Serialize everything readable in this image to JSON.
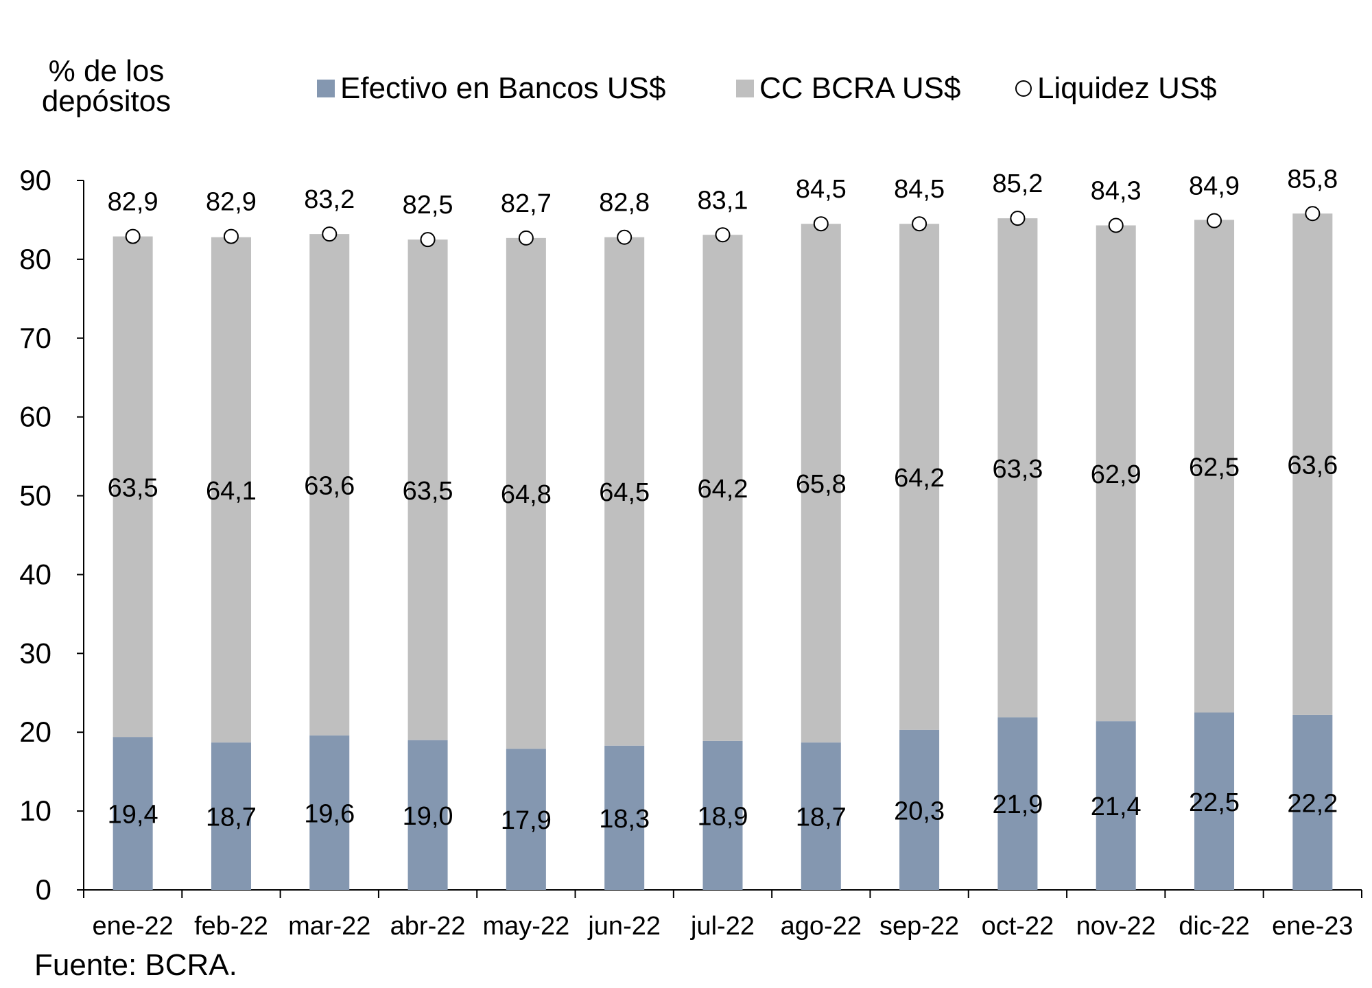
{
  "chart_data": {
    "type": "bar",
    "stacked": true,
    "ylabel": "% de los depósitos",
    "ylim": [
      0,
      90
    ],
    "yticks": [
      0,
      10,
      20,
      30,
      40,
      50,
      60,
      70,
      80,
      90
    ],
    "grid": false,
    "legend_position": "top",
    "categories": [
      "ene-22",
      "feb-22",
      "mar-22",
      "abr-22",
      "may-22",
      "jun-22",
      "jul-22",
      "ago-22",
      "sep-22",
      "oct-22",
      "nov-22",
      "dic-22",
      "ene-23"
    ],
    "series": [
      {
        "name": "Efectivo en Bancos US$",
        "kind": "bar",
        "color": "#8497b0",
        "values": [
          19.4,
          18.7,
          19.6,
          19.0,
          17.9,
          18.3,
          18.9,
          18.7,
          20.3,
          21.9,
          21.4,
          22.5,
          22.2
        ],
        "labels": [
          "19,4",
          "18,7",
          "19,6",
          "19,0",
          "17,9",
          "18,3",
          "18,9",
          "18,7",
          "20,3",
          "21,9",
          "21,4",
          "22,5",
          "22,2"
        ]
      },
      {
        "name": "CC BCRA US$",
        "kind": "bar",
        "color": "#bfbfbf",
        "values": [
          63.5,
          64.1,
          63.6,
          63.5,
          64.8,
          64.5,
          64.2,
          65.8,
          64.2,
          63.3,
          62.9,
          62.5,
          63.6
        ],
        "labels": [
          "63,5",
          "64,1",
          "63,6",
          "63,5",
          "64,8",
          "64,5",
          "64,2",
          "65,8",
          "64,2",
          "63,3",
          "62,9",
          "62,5",
          "63,6"
        ]
      },
      {
        "name": "Liquidez US$",
        "kind": "marker",
        "color": "#ffffff",
        "values": [
          82.9,
          82.9,
          83.2,
          82.5,
          82.7,
          82.8,
          83.1,
          84.5,
          84.5,
          85.2,
          84.3,
          84.9,
          85.8
        ],
        "labels": [
          "82,9",
          "82,9",
          "83,2",
          "82,5",
          "82,7",
          "82,8",
          "83,1",
          "84,5",
          "84,5",
          "85,2",
          "84,3",
          "84,9",
          "85,8"
        ]
      }
    ]
  },
  "source": "Fuente: BCRA."
}
